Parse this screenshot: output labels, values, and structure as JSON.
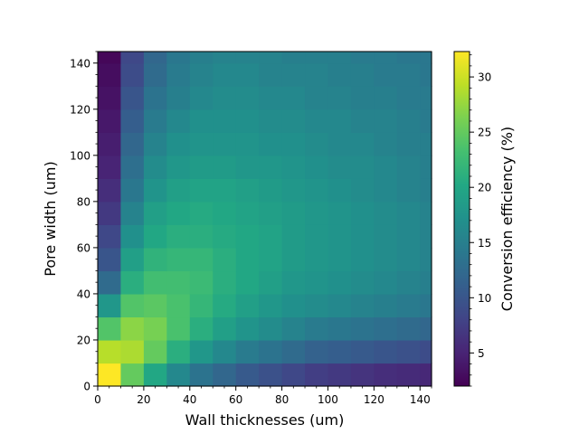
{
  "chart_data": {
    "type": "heatmap",
    "xlabel": "Wall thicknesses (um)",
    "ylabel": "Pore width (um)",
    "colorbar_label": "Conversion efficiency (%)",
    "xlim": [
      0,
      145
    ],
    "ylim": [
      0,
      145
    ],
    "cell_size": 10,
    "x_ticks": [
      0,
      20,
      40,
      60,
      80,
      100,
      120,
      140
    ],
    "y_ticks": [
      0,
      20,
      40,
      60,
      80,
      100,
      120,
      140
    ],
    "colorbar_range": [
      2.0,
      32.3
    ],
    "colorbar_ticks": [
      5,
      10,
      15,
      20,
      25,
      30
    ],
    "colormap": "viridis",
    "x_centers": [
      5,
      15,
      25,
      35,
      45,
      55,
      65,
      75,
      85,
      95,
      105,
      115,
      125,
      135,
      145
    ],
    "y_centers": [
      5,
      15,
      25,
      35,
      45,
      55,
      65,
      75,
      85,
      95,
      105,
      115,
      125,
      135,
      145
    ],
    "values": [
      [
        32.3,
        25.0,
        20.0,
        16.0,
        13.5,
        12.0,
        10.5,
        9.5,
        8.5,
        7.5,
        7.0,
        6.5,
        6.0,
        5.7,
        5.4
      ],
      [
        29.0,
        28.5,
        25.0,
        21.0,
        18.0,
        16.0,
        14.5,
        13.5,
        12.5,
        11.5,
        11.0,
        10.5,
        10.0,
        9.5,
        9.0
      ],
      [
        24.0,
        27.0,
        26.0,
        23.5,
        21.0,
        19.0,
        17.5,
        16.5,
        15.5,
        14.5,
        14.0,
        13.5,
        13.0,
        12.5,
        12.0
      ],
      [
        18.0,
        24.0,
        24.5,
        23.5,
        22.0,
        20.5,
        19.0,
        18.0,
        17.0,
        16.5,
        16.0,
        15.5,
        15.0,
        14.5,
        14.0
      ],
      [
        12.5,
        21.0,
        23.0,
        23.0,
        22.5,
        21.0,
        20.0,
        19.0,
        18.0,
        17.5,
        17.0,
        16.5,
        16.0,
        15.5,
        15.0
      ],
      [
        10.0,
        19.0,
        21.5,
        22.0,
        22.0,
        21.0,
        20.0,
        19.5,
        18.5,
        18.0,
        17.5,
        17.0,
        16.5,
        16.0,
        15.5
      ],
      [
        8.5,
        17.0,
        20.0,
        21.0,
        21.0,
        20.5,
        20.0,
        19.5,
        18.5,
        18.0,
        17.5,
        17.0,
        16.5,
        16.0,
        15.5
      ],
      [
        7.0,
        15.5,
        19.0,
        20.0,
        20.5,
        20.0,
        19.5,
        19.0,
        18.5,
        18.0,
        17.5,
        17.0,
        16.5,
        16.0,
        15.5
      ],
      [
        6.0,
        14.0,
        17.5,
        19.0,
        19.5,
        19.5,
        19.0,
        18.5,
        18.0,
        17.5,
        17.0,
        16.5,
        16.0,
        15.5,
        15.0
      ],
      [
        5.0,
        13.0,
        16.5,
        18.0,
        18.5,
        18.5,
        18.0,
        18.0,
        17.5,
        17.0,
        16.5,
        16.5,
        16.0,
        15.5,
        15.0
      ],
      [
        4.5,
        12.0,
        15.5,
        17.0,
        17.5,
        17.5,
        17.5,
        17.0,
        17.0,
        16.5,
        16.0,
        16.0,
        15.5,
        15.0,
        15.0
      ],
      [
        4.0,
        11.0,
        14.5,
        16.0,
        17.0,
        17.0,
        17.0,
        16.5,
        16.5,
        16.0,
        16.0,
        15.5,
        15.5,
        15.0,
        14.5
      ],
      [
        3.5,
        10.0,
        13.5,
        15.0,
        16.0,
        16.5,
        16.5,
        16.0,
        16.0,
        15.5,
        15.5,
        15.0,
        15.0,
        14.5,
        14.5
      ],
      [
        3.0,
        9.0,
        12.5,
        14.5,
        15.5,
        16.0,
        16.0,
        15.5,
        15.5,
        15.5,
        15.0,
        15.0,
        14.5,
        14.5,
        14.0
      ],
      [
        2.5,
        8.5,
        12.0,
        14.0,
        15.0,
        15.5,
        15.5,
        15.5,
        15.0,
        15.0,
        15.0,
        14.5,
        14.5,
        14.0,
        14.0
      ]
    ]
  }
}
